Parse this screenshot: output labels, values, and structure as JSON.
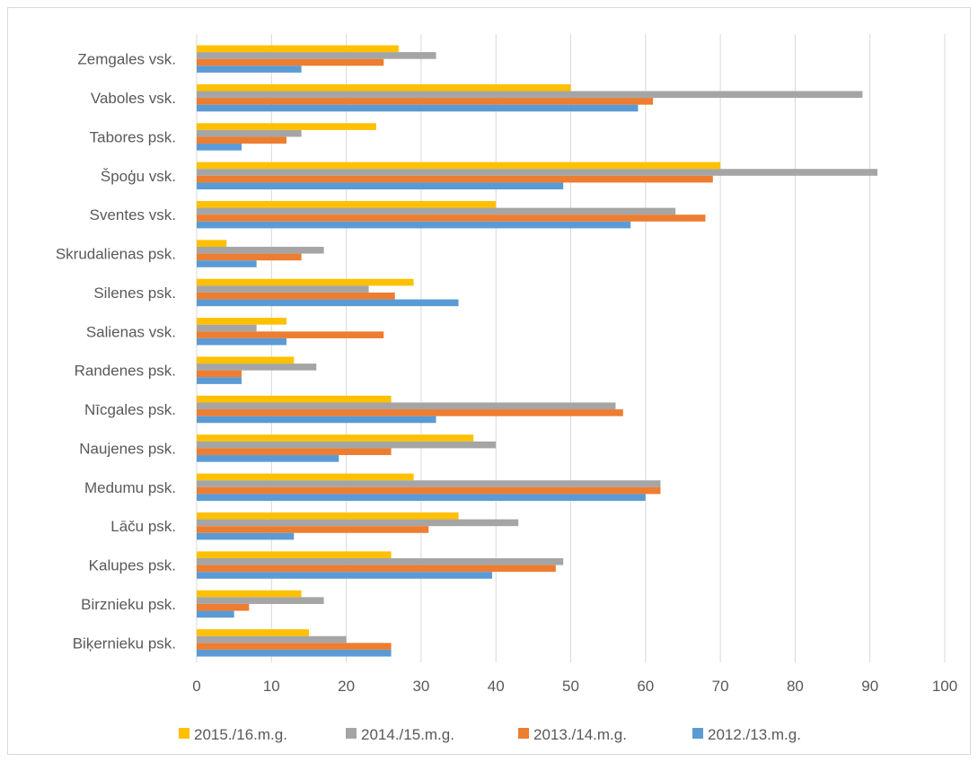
{
  "chart_data": {
    "type": "bar",
    "orientation": "horizontal",
    "categories": [
      "Zemgales vsk.",
      "Vaboles vsk.",
      "Tabores psk.",
      "Špoģu vsk.",
      "Sventes vsk.",
      "Skrudalienas psk.",
      "Silenes psk.",
      "Salienas vsk.",
      "Randenes psk.",
      "Nīcgales psk.",
      "Naujenes psk.",
      "Medumu psk.",
      "Lāču psk.",
      "Kalupes psk.",
      "Birznieku psk.",
      "Biķernieku psk."
    ],
    "series": [
      {
        "name": "2015./16.m.g.",
        "color": "#FFC000",
        "values": [
          27,
          50,
          24,
          70,
          40,
          4,
          29,
          12,
          13,
          26,
          37,
          29,
          35,
          26,
          14,
          15
        ]
      },
      {
        "name": "2014./15.m.g.",
        "color": "#A5A5A5",
        "values": [
          32,
          89,
          14,
          91,
          64,
          17,
          23,
          8,
          16,
          56,
          40,
          62,
          43,
          49,
          17,
          20
        ]
      },
      {
        "name": "2013./14.m.g.",
        "color": "#ED7D31",
        "values": [
          25,
          61,
          12,
          69,
          68,
          14,
          26.5,
          25,
          6,
          57,
          26,
          62,
          31,
          48,
          7,
          26
        ]
      },
      {
        "name": "2012./13.m.g.",
        "color": "#5B9BD5",
        "values": [
          14,
          59,
          6,
          49,
          58,
          8,
          35,
          12,
          6,
          32,
          19,
          60,
          13,
          39.5,
          5,
          26
        ]
      }
    ],
    "xlim": [
      0,
      100
    ],
    "x_ticks": [
      0,
      10,
      20,
      30,
      40,
      50,
      60,
      70,
      80,
      90,
      100
    ],
    "grid": "vertical",
    "legend_position": "bottom",
    "title": "",
    "xlabel": "",
    "ylabel": ""
  }
}
